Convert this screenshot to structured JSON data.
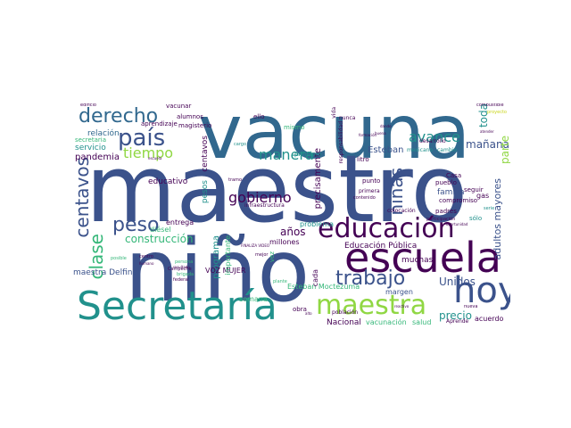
{
  "palette": {
    "purple": "#440154",
    "indigo": "#3b528b",
    "blue": "#31688e",
    "teal": "#21918c",
    "green": "#35b779",
    "lime": "#90d743",
    "yellow": "#c8d418"
  },
  "words": [
    {
      "text": "maestro",
      "color": "#3b528b"
    },
    {
      "text": "vacuna",
      "color": "#31688e"
    },
    {
      "text": "niño",
      "color": "#3b528b"
    },
    {
      "text": "Secretaría",
      "color": "#21918c"
    },
    {
      "text": "escuela",
      "color": "#440154"
    },
    {
      "text": "educación",
      "color": "#440154"
    },
    {
      "text": "hoy",
      "color": "#3b528b"
    },
    {
      "text": "maestra",
      "color": "#90d743"
    },
    {
      "text": "país",
      "color": "#3b528b"
    },
    {
      "text": "derecho",
      "color": "#31688e"
    },
    {
      "text": "trabajo",
      "color": "#3b528b"
    },
    {
      "text": "tiempo",
      "color": "#90d743"
    },
    {
      "text": "peso",
      "color": "#3b528b"
    },
    {
      "text": "centavos",
      "color": "#3b528b"
    },
    {
      "text": "clase",
      "color": "#35b779"
    },
    {
      "text": "niñas",
      "color": "#3b528b"
    },
    {
      "text": "gobierno",
      "color": "#440154"
    },
    {
      "text": "manera",
      "color": "#21918c"
    },
    {
      "text": "avance",
      "color": "#21918c"
    },
    {
      "text": "construcción",
      "color": "#35b779"
    },
    {
      "text": "Unidos",
      "color": "#3b528b"
    },
    {
      "text": "precio",
      "color": "#21918c"
    },
    {
      "text": "años",
      "color": "#440154"
    },
    {
      "text": "mañana",
      "color": "#3b528b"
    },
    {
      "text": "parte",
      "color": "#90d743"
    },
    {
      "text": "toda",
      "color": "#21918c"
    },
    {
      "text": "adultos mayores",
      "color": "#3b528b"
    },
    {
      "text": "pandemia",
      "color": "#440154"
    },
    {
      "text": "relación",
      "color": "#31688e"
    },
    {
      "text": "servicio",
      "color": "#21918c"
    },
    {
      "text": "precisamente",
      "color": "#440154"
    },
    {
      "text": "familia",
      "color": "#3b528b"
    },
    {
      "text": "programa",
      "color": "#21918c"
    },
    {
      "text": "Esteban",
      "color": "#3b528b"
    },
    {
      "text": "educativo",
      "color": "#440154"
    },
    {
      "text": "pesos",
      "color": "#21918c"
    },
    {
      "text": "centavos",
      "color": "#440154"
    },
    {
      "text": "Educación Pública",
      "color": "#440154"
    },
    {
      "text": "muchas",
      "color": "#440154"
    },
    {
      "text": "Nacional",
      "color": "#440154"
    },
    {
      "text": "vacunación",
      "color": "#35b779"
    },
    {
      "text": "salud",
      "color": "#35b779"
    },
    {
      "text": "acuerdo",
      "color": "#440154"
    },
    {
      "text": "Esteban Moctezuma",
      "color": "#35b779"
    },
    {
      "text": "maestra Delfina",
      "color": "#3b528b"
    },
    {
      "text": "VOZ MUJER",
      "color": "#440154"
    },
    {
      "text": "margen",
      "color": "#3b528b"
    },
    {
      "text": "cada",
      "color": "#440154"
    },
    {
      "text": "importante",
      "color": "#35b779"
    },
    {
      "text": "problema",
      "color": "#21918c"
    },
    {
      "text": "millones",
      "color": "#440154"
    },
    {
      "text": "semana",
      "color": "#35b779"
    },
    {
      "text": "vez",
      "color": "#35b779"
    },
    {
      "text": "diésel",
      "color": "#35b779"
    },
    {
      "text": "entrega",
      "color": "#440154"
    },
    {
      "text": "gas",
      "color": "#440154"
    },
    {
      "text": "sólo",
      "color": "#21918c"
    },
    {
      "text": "seguir",
      "color": "#440154"
    },
    {
      "text": "padres",
      "color": "#440154"
    },
    {
      "text": "pueblo",
      "color": "#440154"
    },
    {
      "text": "compromiso",
      "color": "#440154"
    },
    {
      "text": "Casa",
      "color": "#440154"
    },
    {
      "text": "punto",
      "color": "#440154"
    },
    {
      "text": "primera",
      "color": "#440154"
    },
    {
      "text": "colocación",
      "color": "#440154"
    },
    {
      "text": "mexicano",
      "color": "#21918c"
    },
    {
      "text": "cambio",
      "color": "#21918c"
    },
    {
      "text": "desarrollo",
      "color": "#440154"
    },
    {
      "text": "nunca",
      "color": "#440154"
    },
    {
      "text": "ello",
      "color": "#440154"
    },
    {
      "text": "alumnos",
      "color": "#440154"
    },
    {
      "text": "aprendizaje",
      "color": "#440154"
    },
    {
      "text": "magisterio",
      "color": "#440154"
    },
    {
      "text": "vacunar",
      "color": "#440154"
    },
    {
      "text": "secretaria",
      "color": "#35b779"
    },
    {
      "text": "mismo",
      "color": "#35b779"
    },
    {
      "text": "responsabilidad",
      "color": "#440154"
    },
    {
      "text": "principio",
      "color": "#21918c"
    },
    {
      "text": "obra",
      "color": "#440154"
    },
    {
      "text": "población",
      "color": "#440154"
    },
    {
      "text": "Aprende",
      "color": "#440154"
    },
    {
      "text": "nueva",
      "color": "#440154"
    },
    {
      "text": "infraestructura",
      "color": "#440154"
    },
    {
      "text": "litro",
      "color": "#440154"
    },
    {
      "text": "vida",
      "color": "#440154"
    },
    {
      "text": "combustible",
      "color": "#440154"
    },
    {
      "text": "proyecto",
      "color": "#c8d418"
    },
    {
      "text": "edificio",
      "color": "#440154"
    },
    {
      "text": "mejor",
      "color": "#440154"
    },
    {
      "text": "centro",
      "color": "#440154"
    },
    {
      "text": "federal",
      "color": "#440154"
    },
    {
      "text": "Campeche",
      "color": "#440154"
    },
    {
      "text": "plante",
      "color": "#35b779"
    },
    {
      "text": "brigada",
      "color": "#35b779"
    },
    {
      "text": "persona",
      "color": "#35b779"
    },
    {
      "text": "resultado",
      "color": "#440154"
    },
    {
      "text": "posible",
      "color": "#35b779"
    },
    {
      "text": "humano",
      "color": "#440154"
    },
    {
      "text": "participación",
      "color": "#440154"
    },
    {
      "text": "oportunidad",
      "color": "#440154"
    },
    {
      "text": "contenido",
      "color": "#440154"
    },
    {
      "text": "serie",
      "color": "#21918c"
    },
    {
      "text": "FINALIZA VIDEO",
      "color": "#440154"
    },
    {
      "text": "tramo",
      "color": "#440154"
    },
    {
      "text": "cargo",
      "color": "#21918c"
    },
    {
      "text": "atender",
      "color": "#440154"
    },
    {
      "text": "formación",
      "color": "#440154"
    },
    {
      "text": "dando",
      "color": "#440154"
    },
    {
      "text": "buena",
      "color": "#440154"
    },
    {
      "text": "alto",
      "color": "#440154"
    },
    {
      "text": "reactivo",
      "color": "#440154"
    },
    {
      "text": "escuela",
      "color": "#440154"
    }
  ]
}
